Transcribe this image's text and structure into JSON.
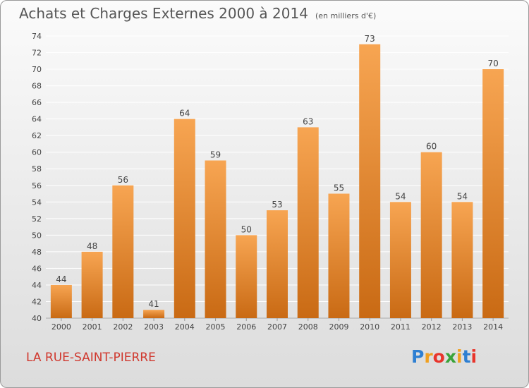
{
  "title": "Achats et Charges Externes 2000 à 2014",
  "subtitle": "(en milliers d'€)",
  "location": "LA RUE-SAINT-PIERRE",
  "logo_letters": [
    "P",
    "r",
    "o",
    "x",
    "i",
    "t",
    "i"
  ],
  "logo_colors": [
    "#2e7fd2",
    "#f0a020",
    "#e8352c",
    "#3aa33a",
    "#f0a020",
    "#2e7fd2",
    "#e8352c"
  ],
  "colors": {
    "bar_light": "#f7a552",
    "bar_dark": "#c96a14",
    "grid": "#ffffff"
  },
  "chart_data": {
    "type": "bar",
    "categories": [
      "2000",
      "2001",
      "2002",
      "2003",
      "2004",
      "2005",
      "2006",
      "2007",
      "2008",
      "2009",
      "2010",
      "2011",
      "2012",
      "2013",
      "2014"
    ],
    "values": [
      44,
      48,
      56,
      41,
      64,
      59,
      50,
      53,
      63,
      55,
      73,
      54,
      60,
      54,
      70
    ],
    "yticks": [
      40,
      42,
      44,
      46,
      48,
      50,
      52,
      54,
      56,
      58,
      60,
      62,
      64,
      66,
      68,
      70,
      72,
      74
    ],
    "ylim": [
      40,
      74
    ],
    "grid": true,
    "xlabel": "",
    "ylabel": ""
  }
}
